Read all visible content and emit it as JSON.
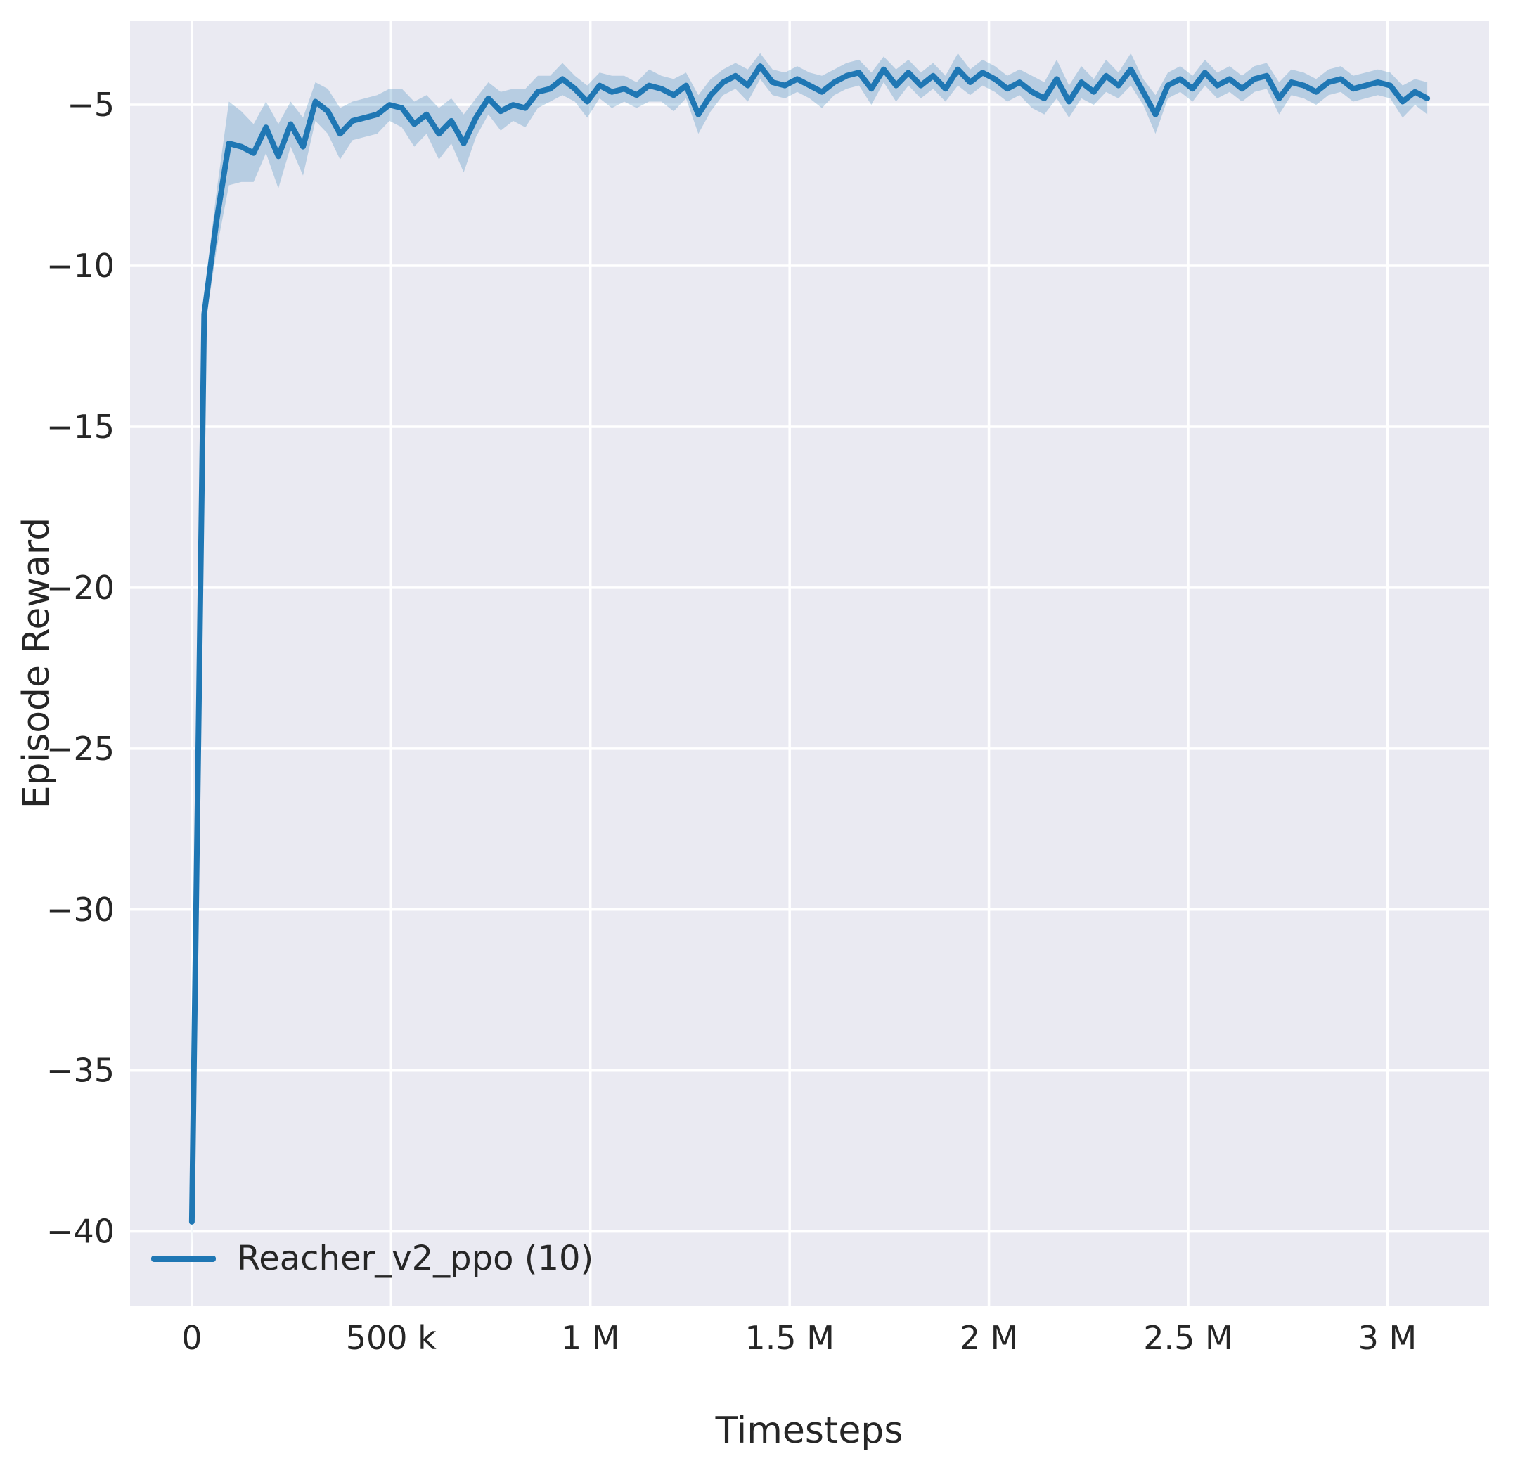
{
  "style": {
    "figure_background": "#ffffff",
    "axes_background": "#eaeaf2",
    "grid_color": "#ffffff",
    "text_color": "#262626",
    "line_color": "#1f77b4",
    "band_color": "#1f77b4",
    "band_opacity": 0.25
  },
  "figure": {
    "xlabel": "Timesteps",
    "ylabel": "Episode Reward",
    "legend_label": "Reacher_v2_ppo (10)"
  },
  "chart_data": {
    "type": "line",
    "title": "",
    "xlabel": "Timesteps",
    "ylabel": "Episode Reward",
    "grid": true,
    "legend_position": "lower left",
    "xlim": [
      -155000,
      3255000
    ],
    "ylim": [
      -42.3,
      -2.4
    ],
    "xticks": {
      "values": [
        0,
        500000,
        1000000,
        1500000,
        2000000,
        2500000,
        3000000
      ],
      "labels": [
        "0",
        "500 k",
        "1 M",
        "1.5 M",
        "2 M",
        "2.5 M",
        "3 M"
      ]
    },
    "yticks": {
      "values": [
        -5,
        -10,
        -15,
        -20,
        -25,
        -30,
        -35,
        -40
      ],
      "labels": [
        "−5",
        "−10",
        "−15",
        "−20",
        "−25",
        "−30",
        "−35",
        "−40"
      ]
    },
    "series": [
      {
        "name": "Reacher_v2_ppo (10)",
        "color": "#1f77b4",
        "x": [
          0,
          31000,
          62000,
          93000,
          124000,
          155000,
          186000,
          217000,
          248000,
          279000,
          310000,
          341000,
          372000,
          403000,
          434000,
          465000,
          496000,
          527000,
          558000,
          589000,
          620000,
          651000,
          682000,
          713000,
          744000,
          775000,
          806000,
          837000,
          868000,
          899000,
          930000,
          961000,
          992000,
          1023000,
          1054000,
          1085000,
          1116000,
          1147000,
          1178000,
          1209000,
          1240000,
          1271000,
          1302000,
          1333000,
          1364000,
          1395000,
          1426000,
          1457000,
          1488000,
          1519000,
          1550000,
          1581000,
          1612000,
          1643000,
          1674000,
          1705000,
          1736000,
          1767000,
          1798000,
          1829000,
          1860000,
          1891000,
          1922000,
          1953000,
          1984000,
          2015000,
          2046000,
          2077000,
          2108000,
          2139000,
          2170000,
          2201000,
          2232000,
          2263000,
          2294000,
          2325000,
          2356000,
          2387000,
          2418000,
          2449000,
          2480000,
          2511000,
          2542000,
          2573000,
          2604000,
          2635000,
          2666000,
          2697000,
          2728000,
          2759000,
          2790000,
          2821000,
          2852000,
          2883000,
          2914000,
          2945000,
          2976000,
          3007000,
          3038000,
          3069000,
          3100000
        ],
        "y": [
          -39.7,
          -11.5,
          -8.6,
          -6.2,
          -6.3,
          -6.5,
          -5.7,
          -6.6,
          -5.6,
          -6.3,
          -4.9,
          -5.2,
          -5.9,
          -5.5,
          -5.4,
          -5.3,
          -5.0,
          -5.1,
          -5.6,
          -5.3,
          -5.9,
          -5.5,
          -6.2,
          -5.4,
          -4.8,
          -5.2,
          -5.0,
          -5.1,
          -4.6,
          -4.5,
          -4.2,
          -4.5,
          -4.9,
          -4.4,
          -4.6,
          -4.5,
          -4.7,
          -4.4,
          -4.5,
          -4.7,
          -4.4,
          -5.3,
          -4.7,
          -4.3,
          -4.1,
          -4.4,
          -3.8,
          -4.3,
          -4.4,
          -4.2,
          -4.4,
          -4.6,
          -4.3,
          -4.1,
          -4.0,
          -4.5,
          -3.9,
          -4.4,
          -4.0,
          -4.4,
          -4.1,
          -4.5,
          -3.9,
          -4.3,
          -4.0,
          -4.2,
          -4.5,
          -4.3,
          -4.6,
          -4.8,
          -4.2,
          -4.9,
          -4.3,
          -4.6,
          -4.1,
          -4.4,
          -3.9,
          -4.6,
          -5.3,
          -4.4,
          -4.2,
          -4.5,
          -4.0,
          -4.4,
          -4.2,
          -4.5,
          -4.2,
          -4.1,
          -4.8,
          -4.3,
          -4.4,
          -4.6,
          -4.3,
          -4.2,
          -4.5,
          -4.4,
          -4.3,
          -4.4,
          -4.9,
          -4.6,
          -4.8
        ],
        "band": [
          0.8,
          0.6,
          0.9,
          1.3,
          1.1,
          0.9,
          0.8,
          1.0,
          0.7,
          0.9,
          0.6,
          0.7,
          0.8,
          0.6,
          0.6,
          0.6,
          0.5,
          0.6,
          0.7,
          0.6,
          0.8,
          0.7,
          0.9,
          0.6,
          0.5,
          0.6,
          0.5,
          0.6,
          0.5,
          0.4,
          0.5,
          0.4,
          0.5,
          0.4,
          0.5,
          0.4,
          0.4,
          0.5,
          0.4,
          0.5,
          0.4,
          0.6,
          0.5,
          0.4,
          0.4,
          0.5,
          0.4,
          0.4,
          0.4,
          0.4,
          0.4,
          0.5,
          0.4,
          0.4,
          0.4,
          0.5,
          0.4,
          0.5,
          0.4,
          0.4,
          0.4,
          0.4,
          0.5,
          0.4,
          0.4,
          0.4,
          0.4,
          0.4,
          0.5,
          0.5,
          0.6,
          0.5,
          0.5,
          0.4,
          0.5,
          0.4,
          0.5,
          0.4,
          0.6,
          0.4,
          0.4,
          0.4,
          0.4,
          0.4,
          0.4,
          0.4,
          0.4,
          0.4,
          0.5,
          0.4,
          0.4,
          0.4,
          0.4,
          0.4,
          0.4,
          0.4,
          0.4,
          0.4,
          0.5,
          0.4,
          0.5
        ]
      }
    ]
  }
}
